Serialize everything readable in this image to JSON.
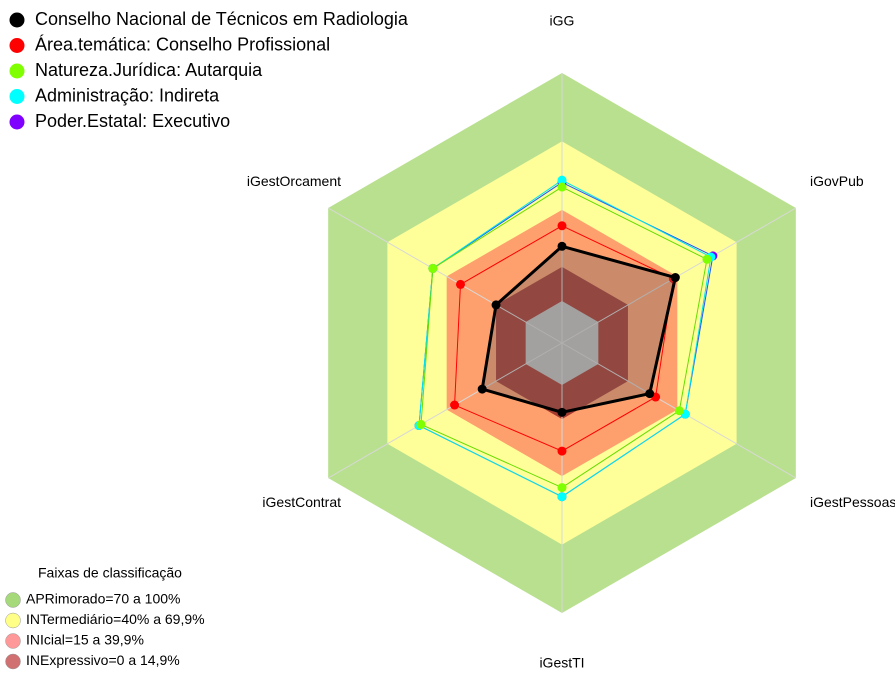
{
  "chart_data": {
    "type": "radar",
    "axes": [
      "iGG",
      "iGovPub",
      "iGestPessoas",
      "iGestTI",
      "iGestContrat",
      "iGestOrcament"
    ],
    "rlim": [
      -18.4,
      100
    ],
    "series": [
      {
        "name": "Conselho Nacional de Técnicos em Radiologia",
        "color": "#000000",
        "line": "#000000",
        "width": 3,
        "filled": true,
        "values": [
          24,
          39,
          26,
          12,
          22,
          15
        ]
      },
      {
        "name": "Área.temática: Conselho Profissional",
        "color": "#ff0000",
        "line": "#ff0000",
        "width": 1,
        "values": [
          33,
          38,
          29,
          29,
          36,
          33
        ]
      },
      {
        "name": "Natureza.Jurídica: Autarquia",
        "color": "#7fff00",
        "line": "#66dd00",
        "width": 1,
        "values": [
          50,
          55,
          41,
          45,
          53,
          47
        ]
      },
      {
        "name": "Administração: Indireta",
        "color": "#00ffff",
        "line": "#00e5ee",
        "width": 1,
        "values": [
          53,
          57,
          44,
          49,
          54,
          47
        ]
      },
      {
        "name": "Poder.Estatal: Executivo",
        "color": "#8000ff",
        "line": "#2255ff",
        "width": 1,
        "values": [
          52,
          58,
          44,
          49,
          54,
          47
        ]
      }
    ],
    "bands_title": "Faixas de classificação",
    "bands": [
      {
        "label": "APRimorado=70 a 100%",
        "from": 70,
        "to": 100,
        "color": "#b9e08f",
        "legend_color": "#a6d97a"
      },
      {
        "label": "INTermediário=40% a 69,9%",
        "from": 40,
        "to": 70,
        "color": "#ffff99",
        "legend_color": "#ffff88"
      },
      {
        "label": "INIcial=15 a 39,9%",
        "from": 15,
        "to": 40,
        "color": "#fea06e",
        "legend_color": "#ff9999"
      },
      {
        "label": "INExpressivo=0 a 14,9%",
        "from": 0,
        "to": 15,
        "color": "#a63a2e",
        "legend_color": "#d07070"
      }
    ],
    "hub_color": "#c0c0c0"
  }
}
